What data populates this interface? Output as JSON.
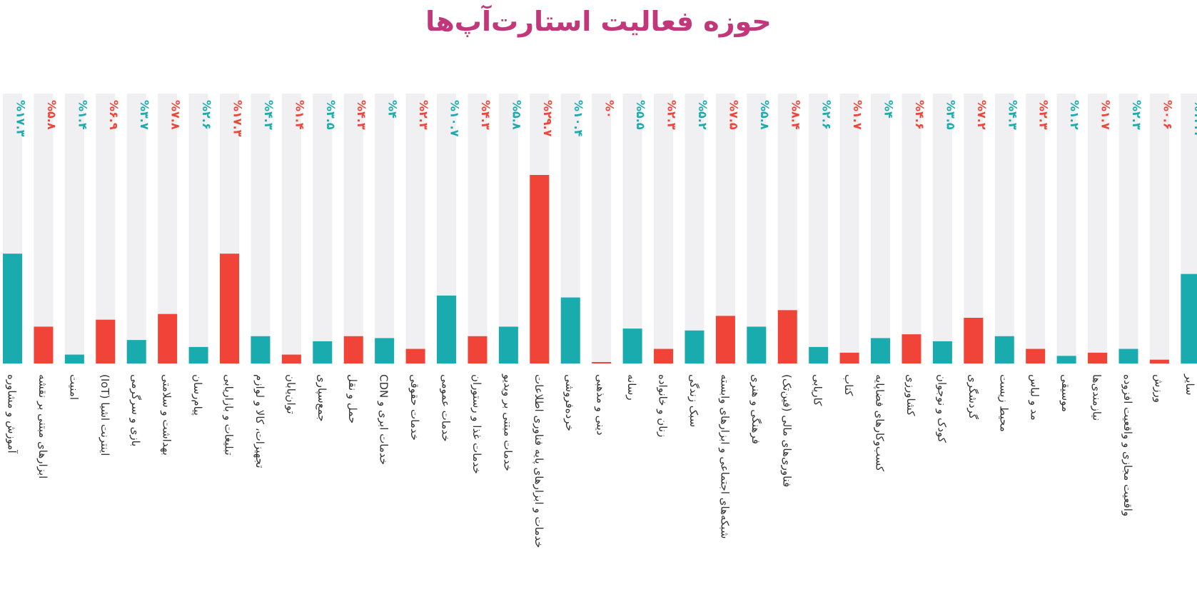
{
  "chart_data": {
    "type": "bar",
    "title": "حوزه فعالیت استارت‌آپ‌ها",
    "ylim": [
      0,
      30
    ],
    "grid": false,
    "legend": "none",
    "colors": {
      "teal": "#1aabae",
      "red": "#ef4437",
      "track": "#f0f0f2"
    },
    "categories": [
      "آموزش و مشاوره",
      "ابزارهای مبتنی بر نقشه",
      "امنیت",
      "اینترنت اشیا (IoT)",
      "بازی و سرگرمی",
      "بهداشت و سلامتی",
      "پیام‌رسان",
      "تبلیغات و بازاریابی",
      "تجهیزات، کالا و لوازم",
      "توان‌یابان",
      "جمع‌سپاری",
      "حمل و نقل",
      "خدمات ابری و CDN",
      "خدمات حقوقی",
      "خدمات عمومی",
      "خدمات غذا و رستوران",
      "خدمات مبتنی بر ویدیو",
      "خدمات و ابزارهای پایه فناوری اطلاعات",
      "خرده‌فروشی",
      "دینی و مذهبی",
      "رسانه",
      "زنان و خانواده",
      "سبک زندگی",
      "شبکه‌های اجتماعی و ابزارهای وابسته",
      "فرهنگی و هنری",
      "فناوری‌های مالی (فین‌تک)",
      "کاریابی",
      "کتاب",
      "کسب‌وکارهای فضاپایه",
      "کشاورزی",
      "کودک و نوجوان",
      "گردشگری",
      "محیط زیست",
      "مد و لباس",
      "موسیقی",
      "نیازمندی‌ها",
      "واقعیت مجازی و واقعیت افزوده",
      "ورزش",
      "سایر"
    ],
    "values": [
      17.3,
      5.8,
      1.4,
      6.9,
      3.7,
      7.8,
      2.6,
      17.3,
      4.3,
      1.4,
      3.5,
      4.3,
      4,
      2.3,
      10.7,
      4.3,
      5.8,
      29.7,
      10.4,
      0,
      5.5,
      2.3,
      5.2,
      7.5,
      5.8,
      8.4,
      2.6,
      1.7,
      4,
      4.6,
      3.5,
      7.2,
      4.3,
      2.3,
      1.2,
      1.7,
      2.3,
      0.6,
      14.1
    ],
    "value_labels": [
      "%۱۷.۳",
      "%۵.۸",
      "%۱.۴",
      "%۶.۹",
      "%۳.۷",
      "%۷.۸",
      "%۲.۶",
      "%۱۷.۳",
      "%۴.۳",
      "%۱.۴",
      "%۳.۵",
      "%۴.۳",
      "%۴",
      "%۲.۳",
      "%۱۰.۷",
      "%۴.۳",
      "%۵.۸",
      "%۲۹.۷",
      "%۱۰.۴",
      "%۰",
      "%۵.۵",
      "%۲.۳",
      "%۵.۲",
      "%۷.۵",
      "%۵.۸",
      "%۸.۴",
      "%۲.۶",
      "%۱.۷",
      "%۴",
      "%۴.۶",
      "%۳.۵",
      "%۷.۲",
      "%۴.۳",
      "%۲.۳",
      "%۱.۲",
      "%۱.۷",
      "%۲.۳",
      "%۰.۶",
      "%۱۴.۱"
    ],
    "bar_colors": [
      "teal",
      "red",
      "teal",
      "red",
      "teal",
      "red",
      "teal",
      "red",
      "teal",
      "red",
      "teal",
      "red",
      "teal",
      "red",
      "teal",
      "red",
      "teal",
      "red",
      "teal",
      "red",
      "teal",
      "red",
      "teal",
      "red",
      "teal",
      "red",
      "teal",
      "red",
      "teal",
      "red",
      "teal",
      "red",
      "teal",
      "red",
      "teal",
      "red",
      "teal",
      "red",
      "teal"
    ]
  }
}
